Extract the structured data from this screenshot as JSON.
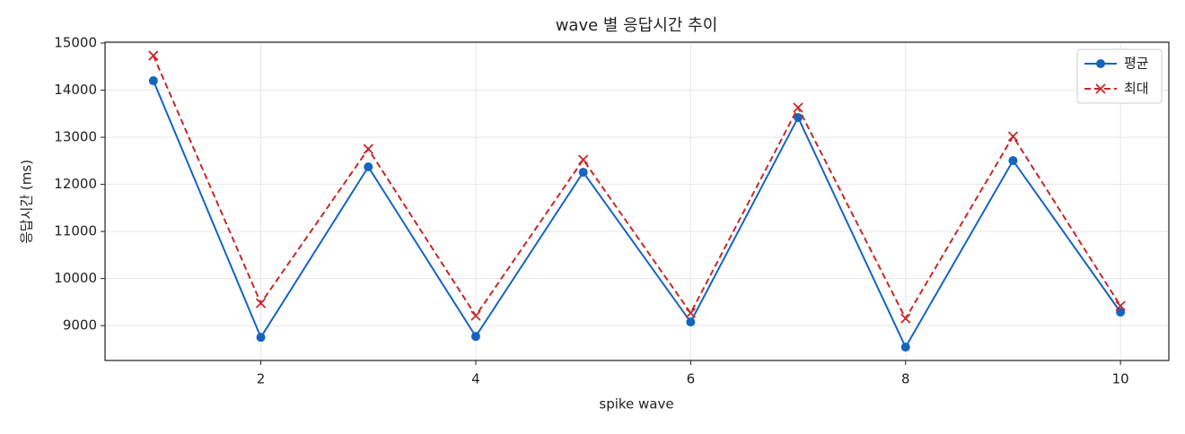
{
  "chart_data": {
    "type": "line",
    "title": "wave 별 응답시간 추이",
    "x_label": "spike wave",
    "y_label": "응답시간 (ms)",
    "x": [
      1,
      2,
      3,
      4,
      5,
      6,
      7,
      8,
      9,
      10
    ],
    "series": [
      {
        "name": "평균",
        "color": "#1565c0",
        "marker": "circle",
        "dashed": false,
        "values": [
          14200,
          8752,
          12371,
          8771,
          12257,
          9076,
          13419,
          8543,
          12505,
          9286
        ]
      },
      {
        "name": "최대",
        "color": "#c62828",
        "marker": "x",
        "dashed": true,
        "values": [
          14733,
          9476,
          12752,
          9210,
          12524,
          9267,
          13629,
          9152,
          13019,
          9419
        ]
      }
    ],
    "xlim": [
      0.55,
      10.45
    ],
    "ylim": [
      8260,
      15020
    ],
    "xticks": [
      2,
      4,
      6,
      8,
      10
    ],
    "yticks": [
      9000,
      10000,
      11000,
      12000,
      13000,
      14000,
      15000
    ],
    "grid": true,
    "legend": "upper right"
  }
}
